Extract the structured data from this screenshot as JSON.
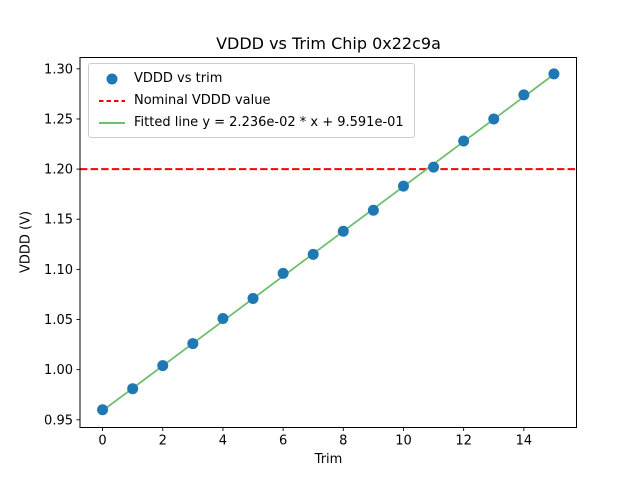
{
  "chart_data": {
    "type": "scatter",
    "title": "VDDD vs Trim Chip 0x22c9a",
    "xlabel": "Trim",
    "ylabel": "VDDD (V)",
    "xlim": [
      -0.75,
      15.75
    ],
    "ylim": [
      0.9423,
      1.3113
    ],
    "xticks": [
      0,
      2,
      4,
      6,
      8,
      10,
      12,
      14
    ],
    "yticks": [
      0.95,
      1.0,
      1.05,
      1.1,
      1.15,
      1.2,
      1.25,
      1.3
    ],
    "grid": false,
    "legend_position": "upper left",
    "series": [
      {
        "name": "VDDD vs trim",
        "type": "scatter",
        "color": "#1f77b4",
        "x": [
          0,
          1,
          2,
          3,
          4,
          5,
          6,
          7,
          8,
          9,
          10,
          11,
          12,
          13,
          14,
          15
        ],
        "y": [
          0.96,
          0.981,
          1.004,
          1.026,
          1.051,
          1.071,
          1.096,
          1.115,
          1.138,
          1.159,
          1.183,
          1.202,
          1.228,
          1.25,
          1.274,
          1.295
        ]
      },
      {
        "name": "Nominal VDDD value",
        "type": "hline",
        "color": "#ff0000",
        "linestyle": "dashed",
        "y": 1.2
      },
      {
        "name": "Fitted line y = 2.236e-02 * x + 9.591e-01",
        "type": "line",
        "color": "#6fbf6f",
        "slope": 0.02236,
        "intercept": 0.9591,
        "x_start": 0,
        "x_end": 15
      }
    ],
    "legend": {
      "entries": [
        {
          "label": "VDDD vs trim",
          "swatch": "dot",
          "color": "#1f77b4"
        },
        {
          "label": "Nominal VDDD value",
          "swatch": "dashed-line",
          "color": "#ff0000"
        },
        {
          "label": "Fitted line y = 2.236e-02 * x + 9.591e-01",
          "swatch": "line",
          "color": "#6fbf6f"
        }
      ]
    }
  }
}
